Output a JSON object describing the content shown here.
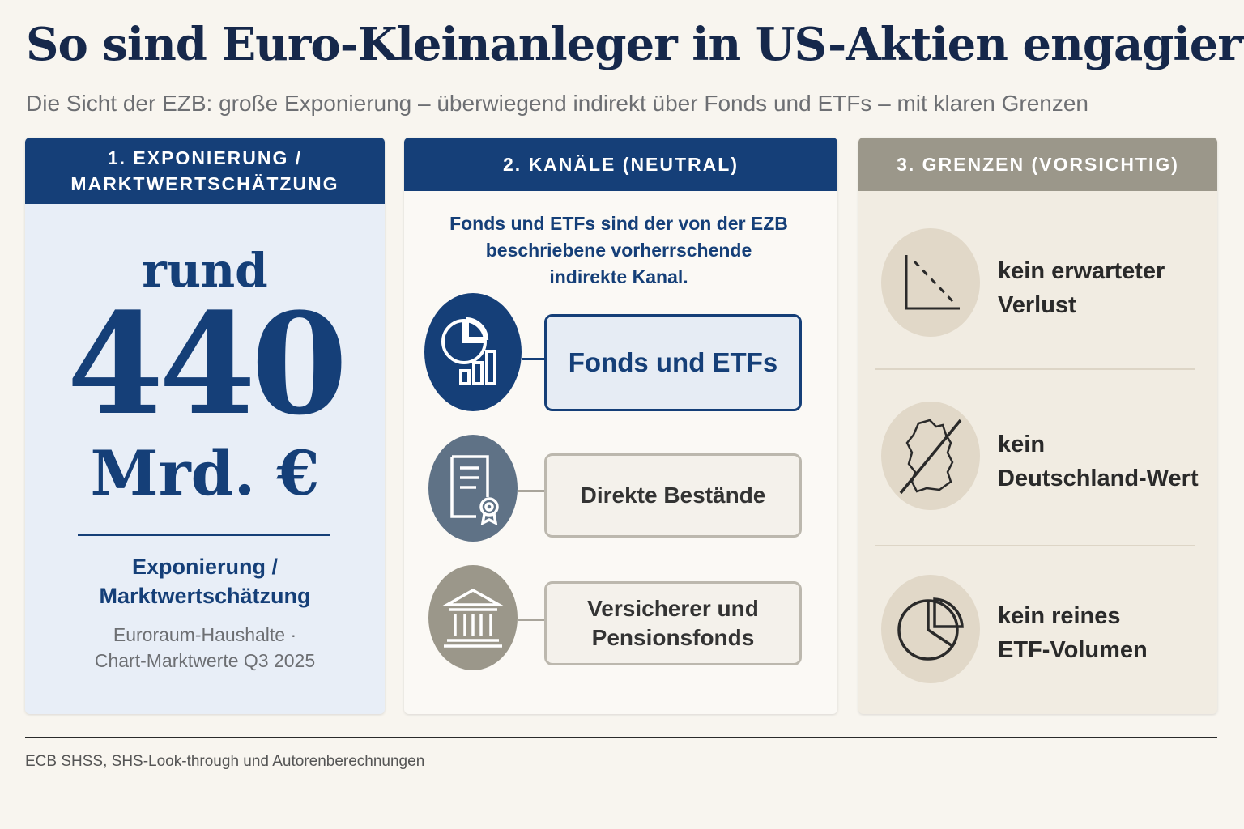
{
  "title": "So sind Euro-Kleinanleger in US-Aktien engagiert",
  "subtitle": "Die Sicht der EZB: große Exponierung – überwiegend indirekt über Fonds und ETFs – mit klaren Grenzen",
  "panel1": {
    "head_line1": "1. EXPONIERUNG /",
    "head_line2": "MARKTWERTSCHÄTZUNG",
    "prefix": "rund",
    "value": "440",
    "unit": "Mrd. €",
    "label_line1": "Exponierung /",
    "label_line2": "Marktwertschätzung",
    "note_line1": "Euroraum-Haushalte ·",
    "note_line2": "Chart-Marktwerte Q3 2025"
  },
  "panel2": {
    "head": "2. KANÄLE (NEUTRAL)",
    "intro_line1": "Fonds und ETFs sind der von der EZB",
    "intro_line2": "beschriebene vorherrschende",
    "intro_line3": "indirekte Kanal.",
    "channels": [
      {
        "label": "Fonds und ETFs",
        "icon": "pie-bar-chart-icon",
        "color": "#153f78"
      },
      {
        "label": "Direkte Bestände",
        "icon": "certificate-document-icon",
        "color": "#5f7286"
      },
      {
        "label_line1": "Versicherer und",
        "label_line2": "Pensionsfonds",
        "icon": "institution-building-icon",
        "color": "#9b978a"
      }
    ]
  },
  "panel3": {
    "head": "3. GRENZEN (VORSICHTIG)",
    "limits": [
      {
        "line1": "kein erwarteter",
        "line2": "Verlust",
        "icon": "declining-chart-icon"
      },
      {
        "line1": "kein",
        "line2": "Deutschland-Wert",
        "icon": "germany-map-crossed-icon"
      },
      {
        "line1": "kein reines",
        "line2": "ETF-Volumen",
        "icon": "pie-chart-icon"
      }
    ]
  },
  "source": "ECB SHSS, SHS-Look-through und Autorenberechnungen",
  "colors": {
    "navy": "#153f78",
    "slate": "#5f7286",
    "taupe": "#9b978a",
    "beige": "#e1d8c8"
  }
}
